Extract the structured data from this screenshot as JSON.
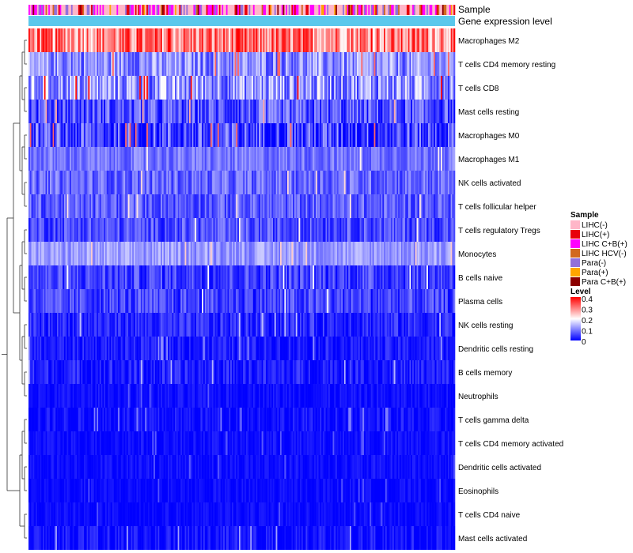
{
  "chart_data": {
    "type": "heatmap",
    "title": "",
    "annotations": [
      {
        "name": "Sample",
        "color": "#ff9ecf"
      },
      {
        "name": "Gene expression level",
        "color": "#5bc8ec"
      }
    ],
    "rows": [
      {
        "name": "Macrophages M2",
        "mean": 0.3,
        "spread": 0.1
      },
      {
        "name": "T cells CD4 memory resting",
        "mean": 0.11,
        "spread": 0.07
      },
      {
        "name": "T cells CD8",
        "mean": 0.12,
        "spread": 0.09
      },
      {
        "name": "Mast cells resting",
        "mean": 0.06,
        "spread": 0.07
      },
      {
        "name": "Macrophages M0",
        "mean": 0.05,
        "spread": 0.09
      },
      {
        "name": "Macrophages M1",
        "mean": 0.09,
        "spread": 0.04
      },
      {
        "name": "NK cells activated",
        "mean": 0.08,
        "spread": 0.05
      },
      {
        "name": "T cells follicular helper",
        "mean": 0.07,
        "spread": 0.05
      },
      {
        "name": "T cells regulatory  Tregs",
        "mean": 0.06,
        "spread": 0.05
      },
      {
        "name": "Monocytes",
        "mean": 0.12,
        "spread": 0.04
      },
      {
        "name": "B cells naive",
        "mean": 0.05,
        "spread": 0.05
      },
      {
        "name": "Plasma cells",
        "mean": 0.05,
        "spread": 0.05
      },
      {
        "name": "NK cells resting",
        "mean": 0.03,
        "spread": 0.04
      },
      {
        "name": "Dendritic cells resting",
        "mean": 0.02,
        "spread": 0.03
      },
      {
        "name": "B cells memory",
        "mean": 0.02,
        "spread": 0.04
      },
      {
        "name": "Neutrophils",
        "mean": 0.01,
        "spread": 0.02
      },
      {
        "name": "T cells gamma delta",
        "mean": 0.01,
        "spread": 0.03
      },
      {
        "name": "T cells CD4 memory activated",
        "mean": 0.01,
        "spread": 0.02
      },
      {
        "name": "Dendritic cells activated",
        "mean": 0.01,
        "spread": 0.02
      },
      {
        "name": "Eosinophils",
        "mean": 0.005,
        "spread": 0.02
      },
      {
        "name": "T cells CD4 naive",
        "mean": 0.005,
        "spread": 0.02
      },
      {
        "name": "Mast cells activated",
        "mean": 0.005,
        "spread": 0.04
      }
    ],
    "sample_legend": {
      "title": "Sample",
      "entries": [
        {
          "label": "LIHC(-)",
          "color": "#ffb6c8"
        },
        {
          "label": "LIHC(+)",
          "color": "#e8000b"
        },
        {
          "label": "LIHC C+B(+)",
          "color": "#ff00ff"
        },
        {
          "label": "LIHC HCV(-)",
          "color": "#d2691e"
        },
        {
          "label": "Para(-)",
          "color": "#9370db"
        },
        {
          "label": "Para(+)",
          "color": "#ffa500"
        },
        {
          "label": "Para C+B(+)",
          "color": "#8b0000"
        }
      ]
    },
    "level_legend": {
      "title": "Level",
      "range": [
        0,
        0.4
      ],
      "ticks": [
        "0.4",
        "0.3",
        "0.2",
        "0.1",
        "0"
      ],
      "colors": [
        "#0000ff",
        "#ffffff",
        "#ff0000"
      ]
    },
    "n_samples": 300
  }
}
